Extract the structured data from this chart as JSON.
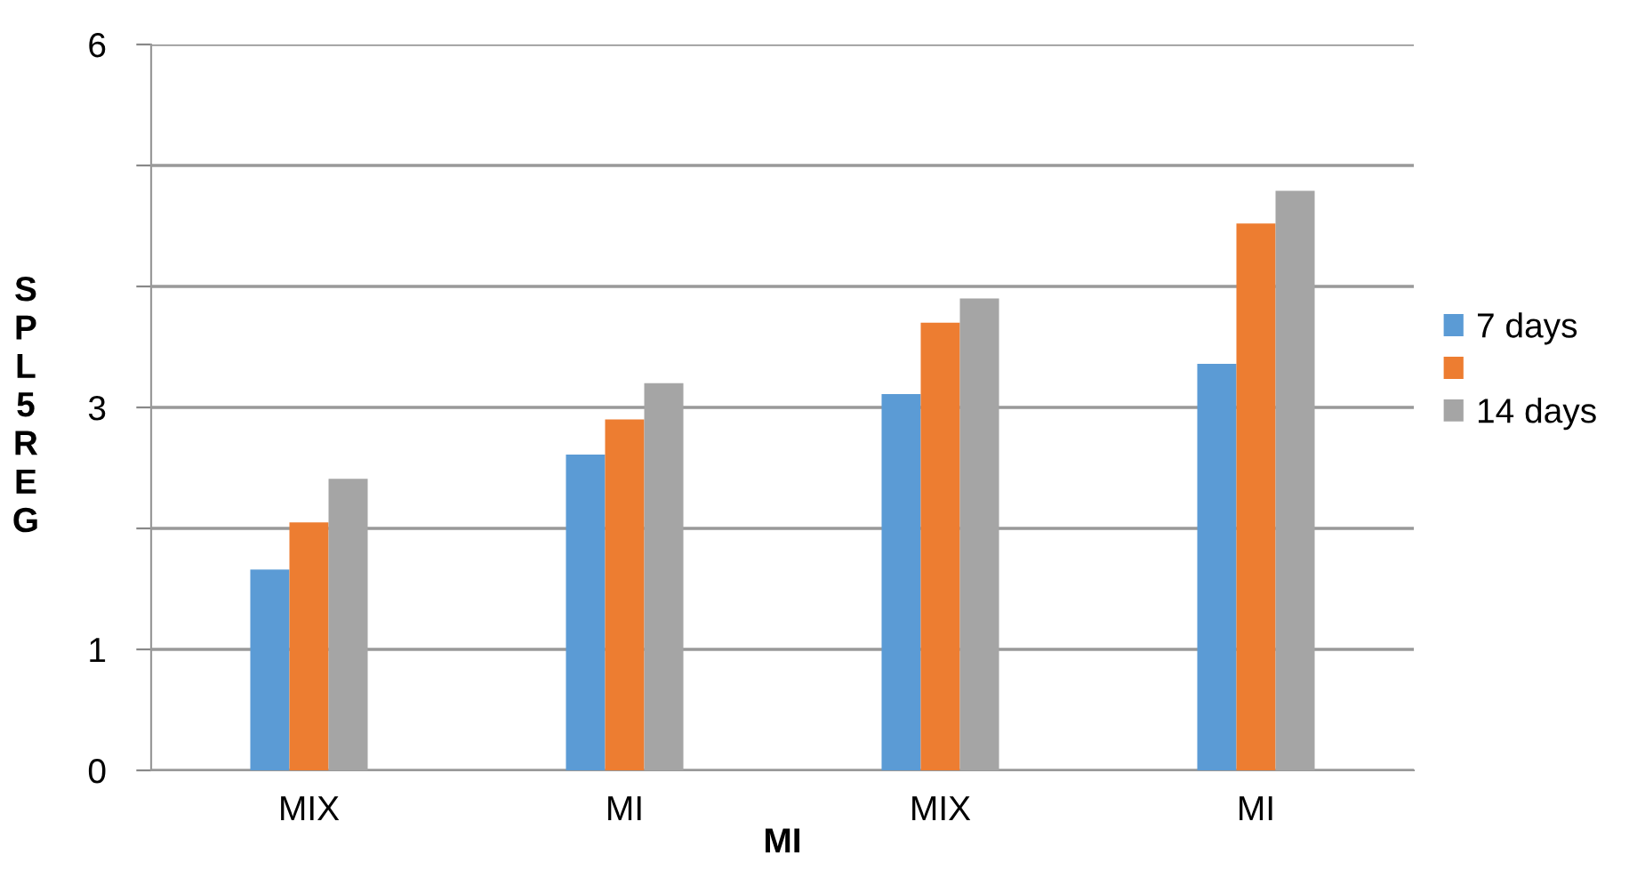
{
  "chart_data": {
    "type": "bar",
    "xlabel": "MI",
    "ylabel": "S\nP\nL\n5\nR\nE\nG",
    "categories": [
      "MIX",
      "MI",
      "MIX",
      "MI"
    ],
    "series": [
      {
        "name": "7 days",
        "color": "#5b9bd5",
        "values": [
          1.66,
          2.61,
          3.11,
          3.36
        ]
      },
      {
        "color": "#ed7d31",
        "values": [
          2.05,
          2.9,
          3.7,
          4.52
        ]
      },
      {
        "name": "14 days",
        "color": "#a5a5a5",
        "values": [
          2.41,
          3.2,
          3.9,
          4.79
        ]
      }
    ],
    "ylim": [
      0,
      6
    ],
    "yticks": [
      0,
      1,
      {
        "value": 2,
        "label": null
      },
      3,
      {
        "value": 4,
        "label": null
      },
      {
        "value": 5,
        "label": null
      },
      6
    ],
    "grid": "y",
    "legend": "right"
  }
}
